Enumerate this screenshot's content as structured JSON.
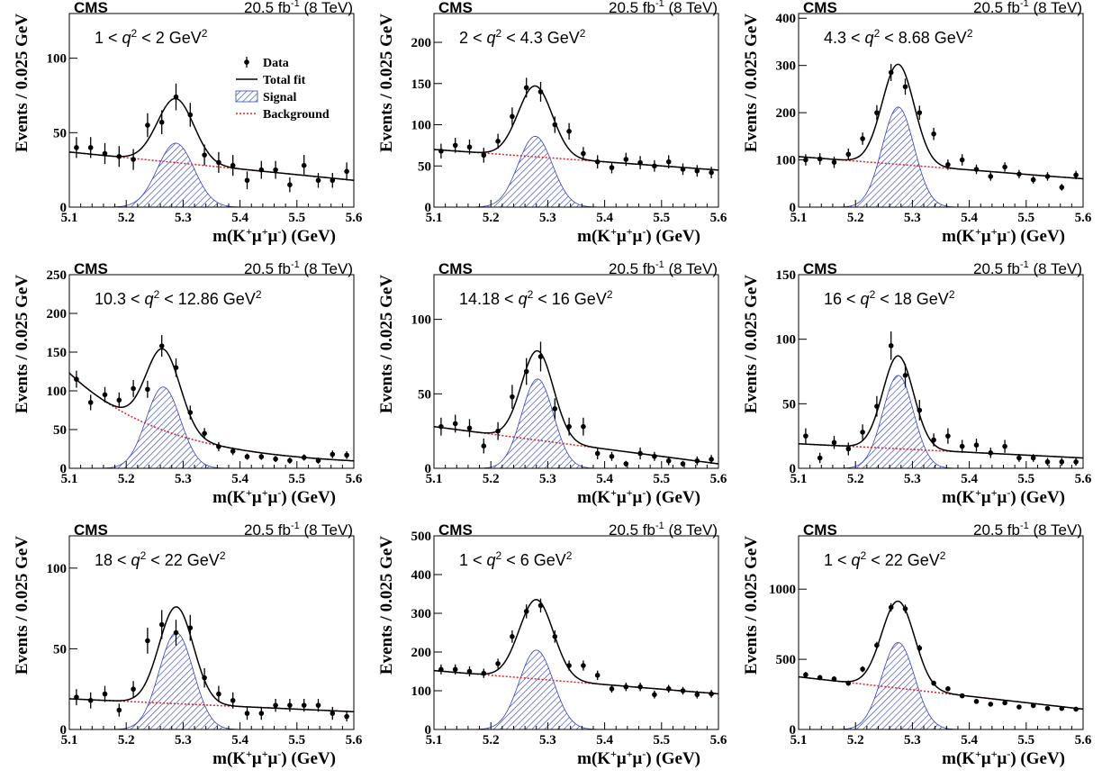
{
  "figure": {
    "experiment": "CMS",
    "luminosity": "20.5 fb",
    "luminosity_sup": "-1",
    "energy": "(8 TeV)",
    "legend": {
      "data": "Data",
      "total_fit": "Total fit",
      "signal": "Signal",
      "background": "Background"
    }
  },
  "colors": {
    "data": "#000000",
    "total_fit": "#000000",
    "signal": "#3344bb",
    "background": "#e02020"
  },
  "chart_data": [
    {
      "type": "scatter",
      "label_parts": [
        "1 < ",
        "q",
        "2",
        " < 2 GeV",
        "2"
      ],
      "xlabel": "m(K+μ+μ-) (GeV)",
      "ylabel": "Events / 0.025 GeV",
      "xlim": [
        5.1,
        5.6
      ],
      "ylim": [
        0,
        130
      ],
      "yticks": [
        0,
        50,
        100
      ],
      "xticks": [
        5.1,
        5.2,
        5.3,
        5.4,
        5.5,
        5.6
      ],
      "has_legend": true,
      "x": [
        5.1125,
        5.1375,
        5.1625,
        5.1875,
        5.2125,
        5.2375,
        5.2625,
        5.2875,
        5.3125,
        5.3375,
        5.3625,
        5.3875,
        5.4125,
        5.4375,
        5.4625,
        5.4875,
        5.5125,
        5.5375,
        5.5625,
        5.5875
      ],
      "y": [
        40,
        40,
        36,
        34,
        32,
        55,
        57,
        74,
        62,
        35,
        30,
        28,
        18,
        25,
        25,
        15,
        28,
        18,
        18,
        24
      ],
      "yerr": [
        7,
        7,
        7,
        7,
        7,
        8,
        8,
        9,
        8,
        7,
        7,
        7,
        6,
        6,
        6,
        5,
        7,
        5,
        5,
        6
      ],
      "background": {
        "x": [
          5.1,
          5.6
        ],
        "y": [
          37,
          18
        ]
      },
      "signal": {
        "peak": 43,
        "mean": 5.287,
        "sigma": 0.032
      }
    },
    {
      "type": "scatter",
      "label_parts": [
        "2 < ",
        "q",
        "2",
        " < 4.3 GeV",
        "2"
      ],
      "xlabel": "m(K+μ+μ-) (GeV)",
      "ylabel": "Events / 0.025 GeV",
      "xlim": [
        5.1,
        5.6
      ],
      "ylim": [
        0,
        235
      ],
      "yticks": [
        0,
        50,
        100,
        150,
        200
      ],
      "xticks": [
        5.1,
        5.2,
        5.3,
        5.4,
        5.5,
        5.6
      ],
      "has_legend": false,
      "x": [
        5.1125,
        5.1375,
        5.1625,
        5.1875,
        5.2125,
        5.2375,
        5.2625,
        5.2875,
        5.3125,
        5.3375,
        5.3625,
        5.3875,
        5.4125,
        5.4375,
        5.4625,
        5.4875,
        5.5125,
        5.5375,
        5.5625,
        5.5875
      ],
      "y": [
        68,
        75,
        73,
        63,
        80,
        110,
        145,
        140,
        100,
        92,
        65,
        55,
        48,
        58,
        54,
        50,
        55,
        46,
        44,
        42
      ],
      "yerr": [
        9,
        9,
        9,
        9,
        9,
        11,
        12,
        12,
        10,
        10,
        8,
        8,
        7,
        8,
        8,
        7,
        8,
        7,
        7,
        7
      ],
      "background": {
        "x": [
          5.1,
          5.6
        ],
        "y": [
          70,
          45
        ]
      },
      "signal": {
        "peak": 86,
        "mean": 5.278,
        "sigma": 0.03
      }
    },
    {
      "type": "scatter",
      "label_parts": [
        "4.3 < ",
        "q",
        "2",
        " < 8.68 GeV",
        "2"
      ],
      "xlabel": "m(K+μ+μ-) (GeV)",
      "ylabel": "Events / 0.025 GeV",
      "xlim": [
        5.1,
        5.6
      ],
      "ylim": [
        0,
        410
      ],
      "yticks": [
        0,
        100,
        200,
        300,
        400
      ],
      "xticks": [
        5.1,
        5.2,
        5.3,
        5.4,
        5.5,
        5.6
      ],
      "has_legend": false,
      "x": [
        5.1125,
        5.1375,
        5.1625,
        5.1875,
        5.2125,
        5.2375,
        5.2625,
        5.2875,
        5.3125,
        5.3375,
        5.3625,
        5.3875,
        5.4125,
        5.4375,
        5.4625,
        5.4875,
        5.5125,
        5.5375,
        5.5625,
        5.5875
      ],
      "y": [
        100,
        102,
        95,
        112,
        145,
        200,
        285,
        255,
        200,
        155,
        90,
        100,
        80,
        65,
        85,
        70,
        58,
        65,
        42,
        68
      ],
      "yerr": [
        12,
        12,
        12,
        12,
        13,
        16,
        18,
        17,
        15,
        13,
        11,
        12,
        10,
        9,
        10,
        9,
        8,
        9,
        7,
        9
      ],
      "background": {
        "x": [
          5.1,
          5.6
        ],
        "y": [
          107,
          60
        ]
      },
      "signal": {
        "peak": 212,
        "mean": 5.275,
        "sigma": 0.028
      }
    },
    {
      "type": "scatter",
      "label_parts": [
        "10.3 < ",
        "q",
        "2",
        " < 12.86 GeV",
        "2"
      ],
      "xlabel": "m(K+μ+μ-) (GeV)",
      "ylabel": "Events / 0.025 GeV",
      "xlim": [
        5.1,
        5.6
      ],
      "ylim": [
        0,
        250
      ],
      "yticks": [
        0,
        50,
        100,
        150,
        200,
        250
      ],
      "xticks": [
        5.1,
        5.2,
        5.3,
        5.4,
        5.5,
        5.6
      ],
      "has_legend": false,
      "x": [
        5.1125,
        5.1375,
        5.1625,
        5.1875,
        5.2125,
        5.2375,
        5.2625,
        5.2875,
        5.3125,
        5.3375,
        5.3625,
        5.3875,
        5.4125,
        5.4375,
        5.4625,
        5.4875,
        5.5125,
        5.5375,
        5.5625,
        5.5875
      ],
      "y": [
        115,
        85,
        95,
        88,
        103,
        102,
        158,
        130,
        72,
        45,
        28,
        22,
        15,
        15,
        12,
        10,
        14,
        10,
        18,
        17
      ],
      "yerr": [
        11,
        10,
        10,
        10,
        11,
        11,
        14,
        12,
        9,
        7,
        6,
        5,
        4,
        4,
        4,
        4,
        4,
        4,
        5,
        5
      ],
      "background": {
        "decay": true,
        "a": 120,
        "b": 5.8,
        "c": 3
      },
      "signal": {
        "peak": 105,
        "mean": 5.265,
        "sigma": 0.03
      }
    },
    {
      "type": "scatter",
      "label_parts": [
        "14.18 < ",
        "q",
        "2",
        " < 16 GeV",
        "2"
      ],
      "xlabel": "m(K+μ+μ-) (GeV)",
      "ylabel": "Events / 0.025 GeV",
      "xlim": [
        5.1,
        5.6
      ],
      "ylim": [
        0,
        130
      ],
      "yticks": [
        0,
        50,
        100
      ],
      "xticks": [
        5.1,
        5.2,
        5.3,
        5.4,
        5.5,
        5.6
      ],
      "has_legend": false,
      "x": [
        5.1125,
        5.1375,
        5.1625,
        5.1875,
        5.2125,
        5.2375,
        5.2625,
        5.2875,
        5.3125,
        5.3375,
        5.3625,
        5.3875,
        5.4125,
        5.4375,
        5.4625,
        5.4875,
        5.5125,
        5.5375,
        5.5625,
        5.5875
      ],
      "y": [
        28,
        30,
        27,
        15,
        25,
        48,
        65,
        75,
        40,
        28,
        28,
        10,
        8,
        3,
        10,
        8,
        5,
        3,
        5,
        6
      ],
      "yerr": [
        6,
        6,
        6,
        5,
        6,
        8,
        9,
        10,
        7,
        6,
        6,
        4,
        3,
        2,
        4,
        3,
        3,
        2,
        3,
        3
      ],
      "background": {
        "x": [
          5.1,
          5.6
        ],
        "y": [
          28,
          3
        ]
      },
      "signal": {
        "peak": 60,
        "mean": 5.282,
        "sigma": 0.028
      }
    },
    {
      "type": "scatter",
      "label_parts": [
        "16 < ",
        "q",
        "2",
        " < 18 GeV",
        "2"
      ],
      "xlabel": "m(K+μ+μ-) (GeV)",
      "ylabel": "Events / 0.025 GeV",
      "xlim": [
        5.1,
        5.6
      ],
      "ylim": [
        0,
        150
      ],
      "yticks": [
        0,
        50,
        100,
        150
      ],
      "xticks": [
        5.1,
        5.2,
        5.3,
        5.4,
        5.5,
        5.6
      ],
      "has_legend": false,
      "x": [
        5.1125,
        5.1375,
        5.1625,
        5.1875,
        5.2125,
        5.2375,
        5.2625,
        5.2875,
        5.3125,
        5.3375,
        5.3625,
        5.3875,
        5.4125,
        5.4375,
        5.4625,
        5.4875,
        5.5125,
        5.5375,
        5.5625,
        5.5875
      ],
      "y": [
        25,
        8,
        20,
        15,
        28,
        48,
        95,
        72,
        45,
        22,
        25,
        17,
        18,
        12,
        17,
        8,
        8,
        5,
        5,
        5
      ],
      "yerr": [
        6,
        4,
        5,
        5,
        6,
        8,
        11,
        9,
        8,
        5,
        6,
        5,
        5,
        4,
        5,
        3,
        3,
        3,
        3,
        3
      ],
      "background": {
        "x": [
          5.1,
          5.6
        ],
        "y": [
          19,
          8
        ]
      },
      "signal": {
        "peak": 72,
        "mean": 5.275,
        "sigma": 0.027
      }
    },
    {
      "type": "scatter",
      "label_parts": [
        "18 < ",
        "q",
        "2",
        " < 22 GeV",
        "2"
      ],
      "xlabel": "m(K+μ+μ-) (GeV)",
      "ylabel": "Events / 0.025 GeV",
      "xlim": [
        5.1,
        5.6
      ],
      "ylim": [
        0,
        120
      ],
      "yticks": [
        0,
        50,
        100
      ],
      "xticks": [
        5.1,
        5.2,
        5.3,
        5.4,
        5.5,
        5.6
      ],
      "has_legend": false,
      "x": [
        5.1125,
        5.1375,
        5.1625,
        5.1875,
        5.2125,
        5.2375,
        5.2625,
        5.2875,
        5.3125,
        5.3375,
        5.3625,
        5.3875,
        5.4125,
        5.4375,
        5.4625,
        5.4875,
        5.5125,
        5.5375,
        5.5625,
        5.5875
      ],
      "y": [
        20,
        18,
        22,
        12,
        25,
        55,
        65,
        60,
        63,
        32,
        22,
        18,
        10,
        10,
        15,
        15,
        15,
        15,
        10,
        8
      ],
      "yerr": [
        5,
        5,
        5,
        4,
        5,
        8,
        9,
        8,
        8,
        6,
        5,
        5,
        4,
        4,
        4,
        4,
        4,
        4,
        4,
        3
      ],
      "background": {
        "x": [
          5.1,
          5.6
        ],
        "y": [
          19,
          11
        ]
      },
      "signal": {
        "peak": 60,
        "mean": 5.288,
        "sigma": 0.03
      }
    },
    {
      "type": "scatter",
      "label_parts": [
        "1 < ",
        "q",
        "2",
        " < 6 GeV",
        "2"
      ],
      "xlabel": "m(K+μ+μ-) (GeV)",
      "ylabel": "Events / 0.025 GeV",
      "xlim": [
        5.1,
        5.6
      ],
      "ylim": [
        0,
        500
      ],
      "yticks": [
        0,
        100,
        200,
        300,
        400,
        500
      ],
      "xticks": [
        5.1,
        5.2,
        5.3,
        5.4,
        5.5,
        5.6
      ],
      "has_legend": false,
      "x": [
        5.1125,
        5.1375,
        5.1625,
        5.1875,
        5.2125,
        5.2375,
        5.2625,
        5.2875,
        5.3125,
        5.3375,
        5.3625,
        5.3875,
        5.4125,
        5.4375,
        5.4625,
        5.4875,
        5.5125,
        5.5375,
        5.5625,
        5.5875
      ],
      "y": [
        155,
        155,
        150,
        145,
        170,
        240,
        305,
        320,
        240,
        165,
        165,
        140,
        105,
        110,
        110,
        90,
        105,
        100,
        90,
        92
      ],
      "yerr": [
        13,
        13,
        13,
        12,
        13,
        16,
        18,
        18,
        16,
        13,
        13,
        12,
        10,
        11,
        11,
        10,
        10,
        10,
        10,
        10
      ],
      "background": {
        "x": [
          5.1,
          5.6
        ],
        "y": [
          152,
          92
        ]
      },
      "signal": {
        "peak": 205,
        "mean": 5.28,
        "sigma": 0.03
      }
    },
    {
      "type": "scatter",
      "label_parts": [
        "1 < ",
        "q",
        "2",
        " < 22 GeV",
        "2"
      ],
      "xlabel": "m(K+μ+μ-) (GeV)",
      "ylabel": "Events / 0.025 GeV",
      "xlim": [
        5.1,
        5.6
      ],
      "ylim": [
        0,
        1380
      ],
      "yticks": [
        0,
        500,
        1000
      ],
      "xticks": [
        5.1,
        5.2,
        5.3,
        5.4,
        5.5,
        5.6
      ],
      "has_legend": false,
      "x": [
        5.1125,
        5.1375,
        5.1625,
        5.1875,
        5.2125,
        5.2375,
        5.2625,
        5.2875,
        5.3125,
        5.3375,
        5.3625,
        5.3875,
        5.4125,
        5.4375,
        5.4625,
        5.4875,
        5.5125,
        5.5375,
        5.5625,
        5.5875
      ],
      "y": [
        390,
        370,
        360,
        330,
        430,
        600,
        870,
        860,
        580,
        330,
        290,
        240,
        200,
        180,
        190,
        160,
        170,
        150,
        150,
        145
      ],
      "yerr": [
        20,
        19,
        19,
        18,
        21,
        25,
        30,
        30,
        24,
        18,
        17,
        16,
        14,
        13,
        14,
        13,
        13,
        12,
        12,
        12
      ],
      "background": {
        "x": [
          5.1,
          5.6
        ],
        "y": [
          375,
          145
        ]
      },
      "signal": {
        "peak": 620,
        "mean": 5.275,
        "sigma": 0.029
      }
    }
  ]
}
